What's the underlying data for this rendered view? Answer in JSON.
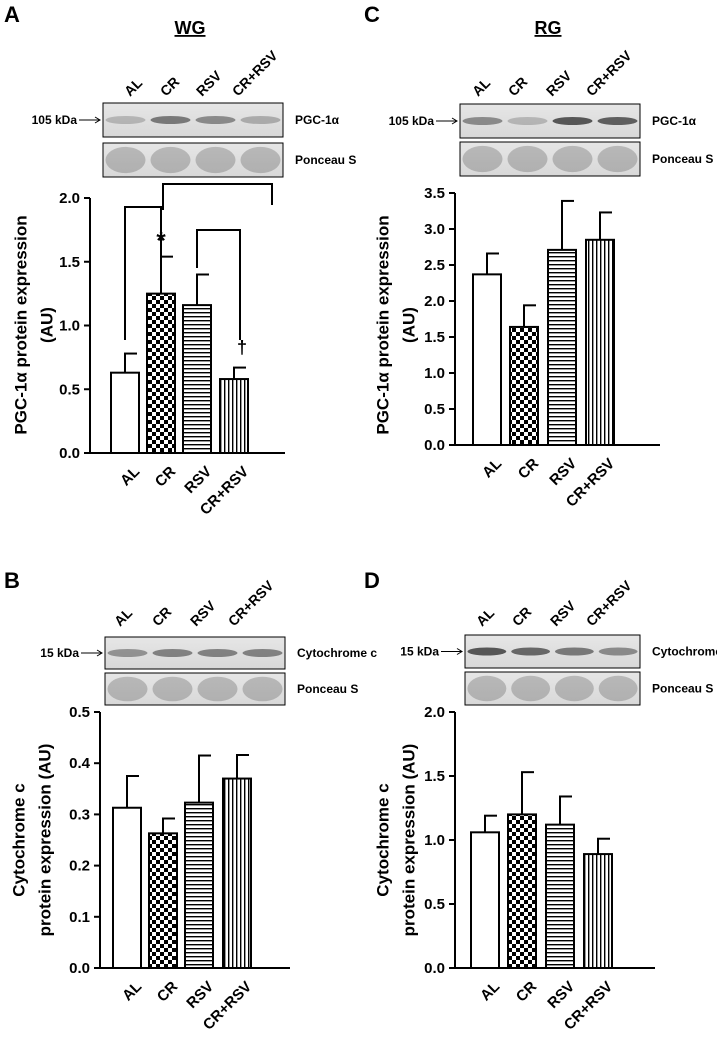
{
  "chart_data": [
    {
      "type": "bar",
      "panel": "A",
      "title": "WG",
      "blot": {
        "marker": "105 kDa",
        "lanes": [
          "AL",
          "CR",
          "RSV",
          "CR+RSV"
        ],
        "bands": [
          "PGC-1α",
          "Ponceau S"
        ]
      },
      "ylabel": [
        "PGC-1α protein expression",
        "(AU)"
      ],
      "categories": [
        "AL",
        "CR",
        "RSV",
        "CR+RSV"
      ],
      "values": [
        0.63,
        1.25,
        1.16,
        0.58
      ],
      "errors": [
        0.15,
        0.29,
        0.24,
        0.09
      ],
      "ylim": [
        0,
        2
      ],
      "yticks": [
        {
          "value": 0,
          "label": "0.0"
        },
        0.5,
        {
          "value": 1,
          "label": "1.0"
        },
        1.5,
        {
          "value": 2,
          "label": "2.0"
        }
      ],
      "annotations": [
        {
          "text": "*",
          "category": "CR"
        },
        {
          "text": "†",
          "category": "CR+RSV"
        }
      ]
    },
    {
      "type": "bar",
      "panel": "B",
      "blot": {
        "marker": "15 kDa",
        "lanes": [
          "AL",
          "CR",
          "RSV",
          "CR+RSV"
        ],
        "bands": [
          "Cytochrome c",
          "Ponceau S"
        ]
      },
      "ylabel": [
        "Cytochrome c",
        "protein expression (AU)"
      ],
      "categories": [
        "AL",
        "CR",
        "RSV",
        "CR+RSV"
      ],
      "values": [
        0.313,
        0.263,
        0.323,
        0.37
      ],
      "errors": [
        0.062,
        0.029,
        0.092,
        0.046
      ],
      "ylim": [
        0,
        0.5
      ],
      "yticks": [
        {
          "value": 0,
          "label": "0.0"
        },
        0.1,
        0.2,
        0.3,
        0.4,
        0.5
      ]
    },
    {
      "type": "bar",
      "panel": "C",
      "title": "RG",
      "blot": {
        "marker": "105 kDa",
        "lanes": [
          "AL",
          "CR",
          "RSV",
          "CR+RSV"
        ],
        "bands": [
          "PGC-1α",
          "Ponceau S"
        ]
      },
      "ylabel": [
        "PGC-1α protein expression",
        "(AU)"
      ],
      "categories": [
        "AL",
        "CR",
        "RSV",
        "CR+RSV"
      ],
      "values": [
        2.37,
        1.64,
        2.71,
        2.85
      ],
      "errors": [
        0.29,
        0.3,
        0.68,
        0.38
      ],
      "ylim": [
        0,
        3.5
      ],
      "yticks": [
        {
          "value": 0,
          "label": "0.0"
        },
        0.5,
        {
          "value": 1,
          "label": "1.0"
        },
        1.5,
        {
          "value": 2,
          "label": "2.0"
        },
        2.5,
        {
          "value": 3,
          "label": "3.0"
        },
        3.5
      ]
    },
    {
      "type": "bar",
      "panel": "D",
      "blot": {
        "marker": "15 kDa",
        "lanes": [
          "AL",
          "CR",
          "RSV",
          "CR+RSV"
        ],
        "bands": [
          "Cytochrome c",
          "Ponceau S"
        ]
      },
      "ylabel": [
        "Cytochrome c",
        "protein expression (AU)"
      ],
      "categories": [
        "AL",
        "CR",
        "RSV",
        "CR+RSV"
      ],
      "values": [
        1.06,
        1.2,
        1.12,
        0.89
      ],
      "errors": [
        0.13,
        0.33,
        0.22,
        0.12
      ],
      "ylim": [
        0,
        2
      ],
      "yticks": [
        {
          "value": 0,
          "label": "0.0"
        },
        0.5,
        {
          "value": 1,
          "label": "1.0"
        },
        1.5,
        {
          "value": 2,
          "label": "2.0"
        }
      ]
    }
  ]
}
